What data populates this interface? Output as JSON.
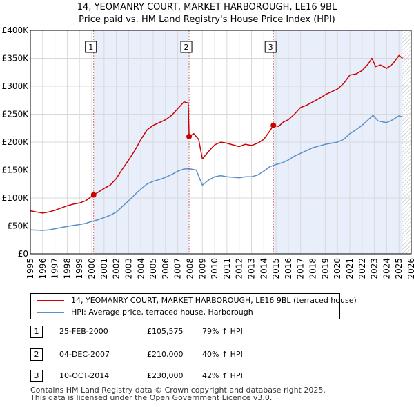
{
  "title": {
    "line1": "14, YEOMANRY COURT, MARKET HARBOROUGH, LE16 9BL",
    "line2": "Price paid vs. HM Land Registry's House Price Index (HPI)"
  },
  "legend": {
    "property_label": "14, YEOMANRY COURT, MARKET HARBOROUGH, LE16 9BL (terraced house)",
    "hpi_label": "HPI: Average price, terraced house, Harborough"
  },
  "colors": {
    "property": "#cc0000",
    "hpi": "#5b8fc9",
    "shade": "#e8eefa",
    "marker_line": "#cc0000"
  },
  "sales": [
    {
      "num": "1",
      "date": "25-FEB-2000",
      "price": "£105,575",
      "hpi": "79% ↑ HPI"
    },
    {
      "num": "2",
      "date": "04-DEC-2007",
      "price": "£210,000",
      "hpi": "40% ↑ HPI"
    },
    {
      "num": "3",
      "date": "10-OCT-2014",
      "price": "£230,000",
      "hpi": "42% ↑ HPI"
    }
  ],
  "footer": {
    "line1": "Contains HM Land Registry data © Crown copyright and database right 2025.",
    "line2": "This data is licensed under the Open Government Licence v3.0."
  },
  "chart_data": {
    "type": "line",
    "title": "14, YEOMANRY COURT, MARKET HARBOROUGH, LE16 9BL — Price paid vs. HM Land Registry's House Price Index (HPI)",
    "xlim": [
      1995,
      2026
    ],
    "ylim": [
      0,
      400000
    ],
    "x_ticks": [
      1995,
      1996,
      1997,
      1998,
      1999,
      2000,
      2001,
      2002,
      2003,
      2004,
      2005,
      2006,
      2007,
      2008,
      2009,
      2010,
      2011,
      2012,
      2013,
      2014,
      2015,
      2016,
      2017,
      2018,
      2019,
      2020,
      2021,
      2022,
      2023,
      2024,
      2025,
      2026
    ],
    "y_ticks": [
      {
        "value": 0,
        "label": "£0"
      },
      {
        "value": 50000,
        "label": "£50K"
      },
      {
        "value": 100000,
        "label": "£100K"
      },
      {
        "value": 150000,
        "label": "£150K"
      },
      {
        "value": 200000,
        "label": "£200K"
      },
      {
        "value": 250000,
        "label": "£250K"
      },
      {
        "value": 300000,
        "label": "£300K"
      },
      {
        "value": 350000,
        "label": "£350K"
      },
      {
        "value": 400000,
        "label": "£400K"
      }
    ],
    "grid": true,
    "shaded_spans": [
      [
        2000.15,
        2007.92
      ],
      [
        2014.78,
        2025.3
      ]
    ],
    "hatch_from": 2025.3,
    "sale_markers": [
      {
        "label": "1",
        "x": 2000.15,
        "y": 105575
      },
      {
        "label": "2",
        "x": 2007.92,
        "y": 210000
      },
      {
        "label": "3",
        "x": 2014.78,
        "y": 230000
      }
    ],
    "series": [
      {
        "name": "14, YEOMANRY COURT, MARKET HARBOROUGH, LE16 9BL (terraced house)",
        "points": [
          [
            1995.0,
            77000
          ],
          [
            1995.5,
            75000
          ],
          [
            1996.0,
            73000
          ],
          [
            1996.5,
            75000
          ],
          [
            1997.0,
            78000
          ],
          [
            1997.5,
            82000
          ],
          [
            1998.0,
            86000
          ],
          [
            1998.5,
            89000
          ],
          [
            1999.0,
            91000
          ],
          [
            1999.5,
            95000
          ],
          [
            2000.15,
            105575
          ],
          [
            2000.5,
            110000
          ],
          [
            2001.0,
            117000
          ],
          [
            2001.5,
            123000
          ],
          [
            2002.0,
            135000
          ],
          [
            2002.5,
            152000
          ],
          [
            2003.0,
            168000
          ],
          [
            2003.5,
            185000
          ],
          [
            2004.0,
            205000
          ],
          [
            2004.5,
            222000
          ],
          [
            2005.0,
            230000
          ],
          [
            2005.5,
            235000
          ],
          [
            2006.0,
            240000
          ],
          [
            2006.5,
            248000
          ],
          [
            2007.0,
            260000
          ],
          [
            2007.5,
            272000
          ],
          [
            2007.85,
            270000
          ],
          [
            2007.92,
            210000
          ],
          [
            2008.3,
            215000
          ],
          [
            2008.7,
            205000
          ],
          [
            2009.0,
            170000
          ],
          [
            2009.3,
            178000
          ],
          [
            2009.7,
            188000
          ],
          [
            2010.0,
            195000
          ],
          [
            2010.5,
            200000
          ],
          [
            2011.0,
            198000
          ],
          [
            2011.5,
            195000
          ],
          [
            2012.0,
            192000
          ],
          [
            2012.5,
            196000
          ],
          [
            2013.0,
            194000
          ],
          [
            2013.5,
            198000
          ],
          [
            2014.0,
            205000
          ],
          [
            2014.5,
            220000
          ],
          [
            2014.78,
            230000
          ],
          [
            2015.2,
            228000
          ],
          [
            2015.6,
            236000
          ],
          [
            2016.0,
            240000
          ],
          [
            2016.5,
            250000
          ],
          [
            2017.0,
            262000
          ],
          [
            2017.5,
            266000
          ],
          [
            2018.0,
            272000
          ],
          [
            2018.5,
            278000
          ],
          [
            2019.0,
            285000
          ],
          [
            2019.5,
            290000
          ],
          [
            2020.0,
            295000
          ],
          [
            2020.5,
            305000
          ],
          [
            2021.0,
            320000
          ],
          [
            2021.5,
            322000
          ],
          [
            2022.0,
            328000
          ],
          [
            2022.5,
            340000
          ],
          [
            2022.8,
            350000
          ],
          [
            2023.1,
            335000
          ],
          [
            2023.5,
            338000
          ],
          [
            2024.0,
            332000
          ],
          [
            2024.5,
            340000
          ],
          [
            2025.0,
            355000
          ],
          [
            2025.3,
            350000
          ]
        ]
      },
      {
        "name": "HPI: Average price, terraced house, Harborough",
        "points": [
          [
            1995.0,
            43000
          ],
          [
            1995.5,
            42500
          ],
          [
            1996.0,
            42000
          ],
          [
            1996.5,
            43000
          ],
          [
            1997.0,
            45000
          ],
          [
            1997.5,
            47000
          ],
          [
            1998.0,
            49000
          ],
          [
            1998.5,
            51000
          ],
          [
            1999.0,
            52500
          ],
          [
            1999.5,
            54500
          ],
          [
            2000.0,
            58000
          ],
          [
            2000.5,
            61000
          ],
          [
            2001.0,
            65000
          ],
          [
            2001.5,
            69000
          ],
          [
            2002.0,
            75000
          ],
          [
            2002.5,
            85000
          ],
          [
            2003.0,
            95000
          ],
          [
            2003.5,
            106000
          ],
          [
            2004.0,
            116000
          ],
          [
            2004.5,
            125000
          ],
          [
            2005.0,
            130000
          ],
          [
            2005.5,
            133000
          ],
          [
            2006.0,
            137000
          ],
          [
            2006.5,
            142000
          ],
          [
            2007.0,
            148000
          ],
          [
            2007.5,
            152000
          ],
          [
            2008.0,
            152000
          ],
          [
            2008.5,
            150000
          ],
          [
            2009.0,
            123000
          ],
          [
            2009.5,
            132000
          ],
          [
            2010.0,
            138000
          ],
          [
            2010.5,
            140000
          ],
          [
            2011.0,
            138000
          ],
          [
            2011.5,
            137000
          ],
          [
            2012.0,
            136000
          ],
          [
            2012.5,
            138000
          ],
          [
            2013.0,
            138000
          ],
          [
            2013.5,
            141000
          ],
          [
            2014.0,
            148000
          ],
          [
            2014.5,
            156000
          ],
          [
            2015.0,
            160000
          ],
          [
            2015.5,
            163000
          ],
          [
            2016.0,
            168000
          ],
          [
            2016.5,
            175000
          ],
          [
            2017.0,
            180000
          ],
          [
            2017.5,
            185000
          ],
          [
            2018.0,
            190000
          ],
          [
            2018.5,
            193000
          ],
          [
            2019.0,
            196000
          ],
          [
            2019.5,
            198000
          ],
          [
            2020.0,
            200000
          ],
          [
            2020.5,
            205000
          ],
          [
            2021.0,
            215000
          ],
          [
            2021.5,
            222000
          ],
          [
            2022.0,
            230000
          ],
          [
            2022.5,
            240000
          ],
          [
            2022.9,
            248000
          ],
          [
            2023.3,
            238000
          ],
          [
            2023.7,
            236000
          ],
          [
            2024.0,
            235000
          ],
          [
            2024.5,
            240000
          ],
          [
            2025.0,
            247000
          ],
          [
            2025.3,
            245000
          ]
        ]
      }
    ]
  }
}
